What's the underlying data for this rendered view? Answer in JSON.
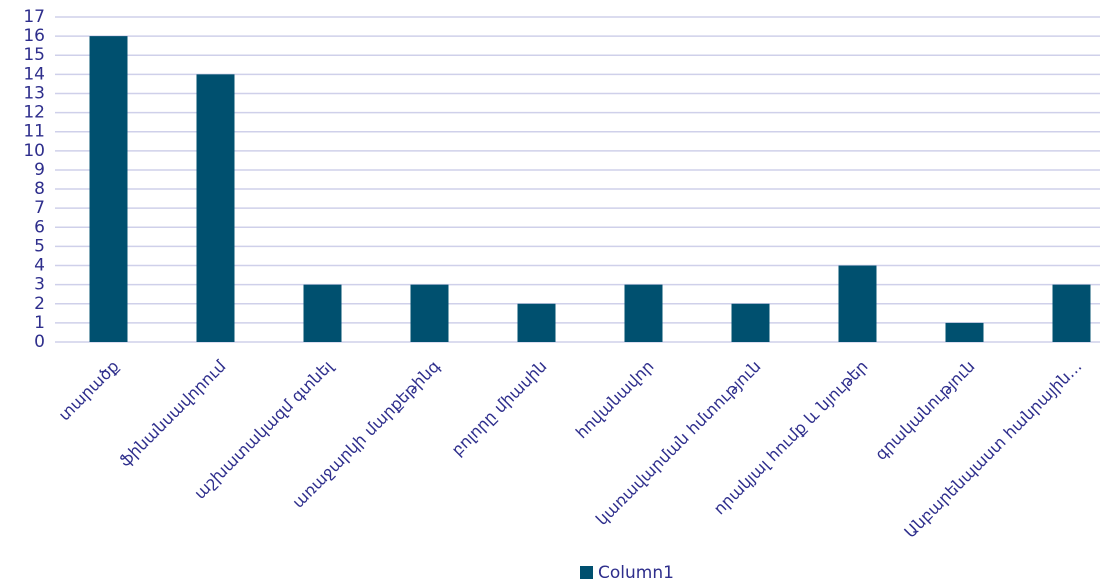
{
  "chart_data": {
    "type": "bar",
    "categories": [
      "տարածք",
      "ֆինանսավորում",
      "աշխատակազմ գտնել",
      "առաջարկի մարքեթինգ",
      "բոլորը միասին",
      "հովանավոր",
      "կառավարման հմտություն",
      "որակյալ հումք և նյութեր",
      "գրականություն",
      "Անբարենպաստ հանրային…"
    ],
    "series": [
      {
        "name": "Column1",
        "color": "#00506f",
        "values": [
          16,
          14,
          3,
          3,
          2,
          3,
          2,
          4,
          1,
          3
        ]
      }
    ],
    "ylim": [
      0,
      17
    ],
    "yticks": [
      0,
      1,
      2,
      3,
      4,
      5,
      6,
      7,
      8,
      9,
      10,
      11,
      12,
      13,
      14,
      15,
      16,
      17
    ],
    "grid": true,
    "legend": "bottom"
  }
}
